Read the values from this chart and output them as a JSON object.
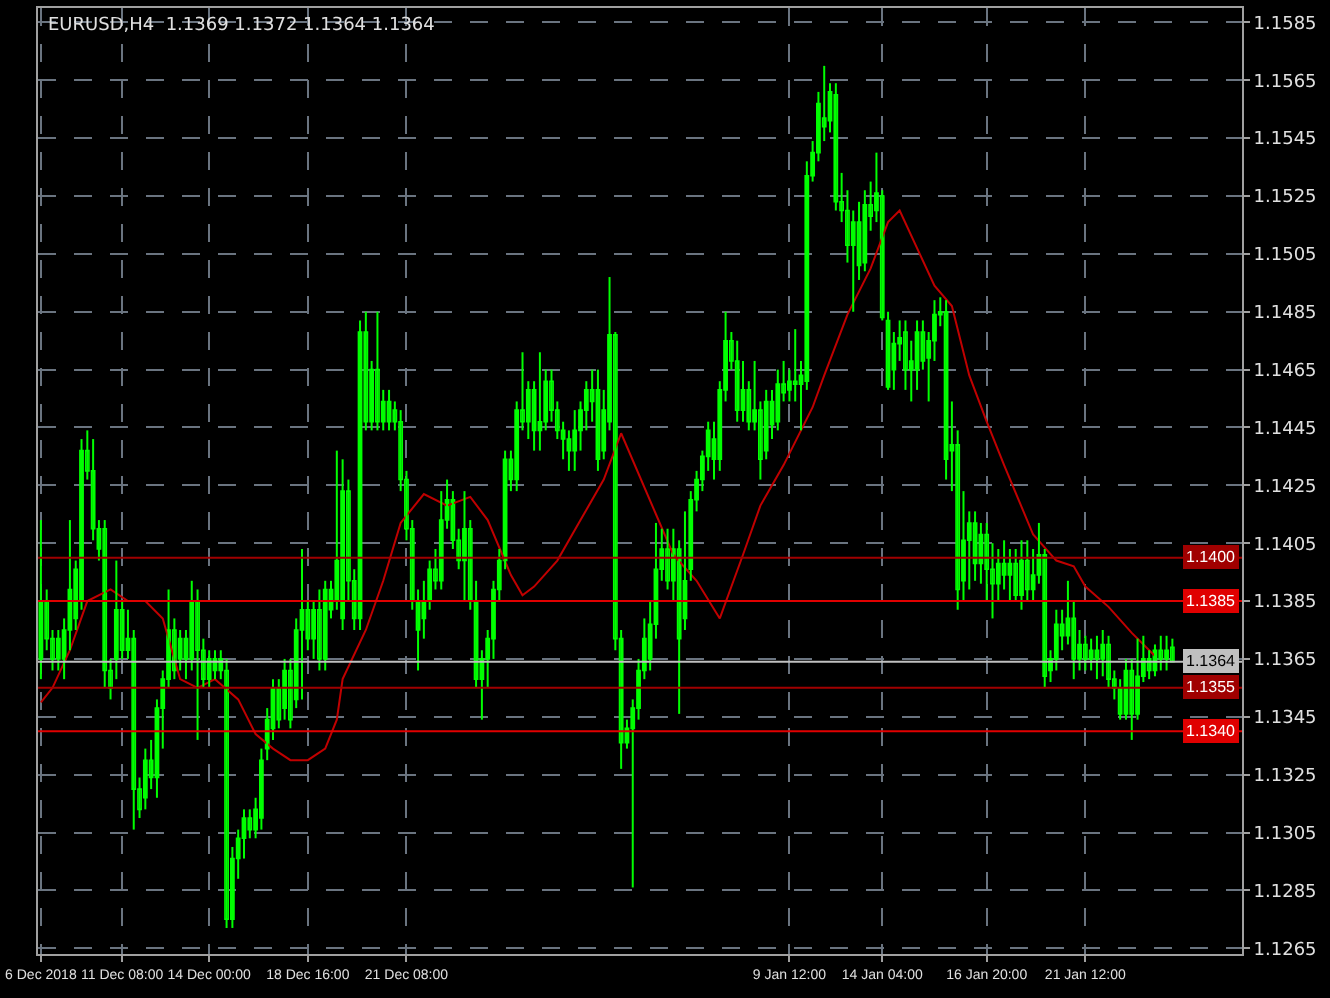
{
  "chart_data": {
    "type": "candlestick",
    "title": "EURUSD,H4  1.1369 1.1372 1.1364 1.1364",
    "color": "#00ff00",
    "grid": true,
    "categories": [
      "6 Dec 2018",
      null,
      null,
      null,
      null,
      null,
      null,
      null,
      null,
      null,
      null,
      null,
      null,
      null,
      "11 Dec 08:00",
      null,
      null,
      null,
      null,
      null,
      null,
      null,
      null,
      null,
      null,
      null,
      null,
      null,
      null,
      "14 Dec 00:00",
      null,
      null,
      null,
      null,
      null,
      null,
      null,
      null,
      null,
      null,
      null,
      null,
      null,
      null,
      null,
      null,
      "18 Dec 16:00",
      null,
      null,
      null,
      null,
      null,
      null,
      null,
      null,
      null,
      null,
      null,
      null,
      null,
      null,
      null,
      null,
      "21 Dec 08:00",
      null,
      null,
      null,
      null,
      null,
      null,
      null,
      null,
      null,
      null,
      null,
      null,
      null,
      null,
      null,
      null,
      null,
      null,
      null,
      null,
      null,
      null,
      null,
      null,
      null,
      null,
      null,
      null,
      null,
      null,
      null,
      null,
      null,
      null,
      null,
      null,
      null,
      null,
      null,
      null,
      null,
      null,
      null,
      null,
      null,
      null,
      null,
      null,
      null,
      null,
      null,
      null,
      null,
      null,
      null,
      null,
      null,
      null,
      null,
      null,
      null,
      null,
      null,
      null,
      null,
      "9 Jan 12:00",
      null,
      null,
      null,
      null,
      null,
      null,
      null,
      null,
      null,
      null,
      null,
      null,
      null,
      null,
      null,
      "14 Jan 04:00",
      null,
      null,
      null,
      null,
      null,
      null,
      null,
      null,
      null,
      null,
      null,
      null,
      null,
      null,
      null,
      null,
      null,
      "16 Jan 20:00",
      null,
      null,
      null,
      null,
      null,
      null,
      null,
      null,
      null,
      null,
      null,
      null,
      null,
      null,
      null,
      null,
      "21 Jan 12:00",
      null,
      null,
      null,
      null,
      null,
      null,
      null,
      null,
      null,
      null,
      null,
      null,
      null,
      null,
      null
    ],
    "ohlc": [
      [
        1.1365,
        1.1413,
        1.1358,
        1.1385
      ],
      [
        1.1385,
        1.1389,
        1.1368,
        1.1372
      ],
      [
        1.1372,
        1.1375,
        1.1361,
        1.1365
      ],
      [
        1.1365,
        1.1375,
        1.1361,
        1.1372
      ],
      [
        1.1365,
        1.1379,
        1.1358,
        1.1375
      ],
      [
        1.1375,
        1.1413,
        1.1368,
        1.1389
      ],
      [
        1.1379,
        1.1399,
        1.1375,
        1.1396
      ],
      [
        1.1385,
        1.1441,
        1.1382,
        1.1437
      ],
      [
        1.1437,
        1.1444,
        1.1427,
        1.143
      ],
      [
        1.143,
        1.1441,
        1.1406,
        1.141
      ],
      [
        1.141,
        1.1413,
        1.1399,
        1.1403
      ],
      [
        1.141,
        1.1413,
        1.1355,
        1.1361
      ],
      [
        1.1361,
        1.1365,
        1.1351,
        1.1355
      ],
      [
        1.1365,
        1.1399,
        1.1358,
        1.1382
      ],
      [
        1.1382,
        1.1385,
        1.1365,
        1.1368
      ],
      [
        1.1368,
        1.1382,
        1.1365,
        1.1372
      ],
      [
        1.1372,
        1.1375,
        1.1306,
        1.132
      ],
      [
        1.132,
        1.1324,
        1.131,
        1.1313
      ],
      [
        1.1317,
        1.1334,
        1.1313,
        1.133
      ],
      [
        1.133,
        1.1337,
        1.132,
        1.1324
      ],
      [
        1.1324,
        1.1351,
        1.1317,
        1.1348
      ],
      [
        1.1348,
        1.1361,
        1.1334,
        1.1358
      ],
      [
        1.1358,
        1.1389,
        1.1355,
        1.1375
      ],
      [
        1.1375,
        1.1379,
        1.1358,
        1.1361
      ],
      [
        1.1365,
        1.1375,
        1.1361,
        1.1372
      ],
      [
        1.1372,
        1.1375,
        1.1358,
        1.1365
      ],
      [
        1.1365,
        1.1392,
        1.1361,
        1.1385
      ],
      [
        1.1385,
        1.1389,
        1.1337,
        1.1368
      ],
      [
        1.1368,
        1.1372,
        1.1355,
        1.1358
      ],
      [
        1.1358,
        1.1368,
        1.1355,
        1.1365
      ],
      [
        1.1365,
        1.1368,
        1.1358,
        1.1361
      ],
      [
        1.1361,
        1.1368,
        1.1358,
        1.1365
      ],
      [
        1.1361,
        1.1365,
        1.1272,
        1.1275
      ],
      [
        1.1275,
        1.13,
        1.1272,
        1.1296
      ],
      [
        1.1296,
        1.1306,
        1.1289,
        1.1303
      ],
      [
        1.1303,
        1.1313,
        1.1296,
        1.131
      ],
      [
        1.131,
        1.1313,
        1.1303,
        1.1306
      ],
      [
        1.1306,
        1.1317,
        1.1303,
        1.1313
      ],
      [
        1.131,
        1.1334,
        1.1306,
        1.133
      ],
      [
        1.1334,
        1.1348,
        1.133,
        1.1344
      ],
      [
        1.1341,
        1.1358,
        1.1337,
        1.1355
      ],
      [
        1.1355,
        1.1358,
        1.1341,
        1.1344
      ],
      [
        1.1348,
        1.1365,
        1.1344,
        1.1361
      ],
      [
        1.1361,
        1.1365,
        1.1341,
        1.1344
      ],
      [
        1.1351,
        1.1379,
        1.1348,
        1.1375
      ],
      [
        1.1375,
        1.1403,
        1.1351,
        1.1382
      ],
      [
        1.1382,
        1.1385,
        1.1368,
        1.1372
      ],
      [
        1.1372,
        1.1385,
        1.1365,
        1.1382
      ],
      [
        1.1382,
        1.1389,
        1.1361,
        1.1365
      ],
      [
        1.1365,
        1.1392,
        1.1361,
        1.1389
      ],
      [
        1.1389,
        1.1392,
        1.1379,
        1.1382
      ],
      [
        1.1385,
        1.1437,
        1.1382,
        1.1399
      ],
      [
        1.1379,
        1.1434,
        1.1375,
        1.1423
      ],
      [
        1.1423,
        1.1427,
        1.1385,
        1.1392
      ],
      [
        1.1392,
        1.1396,
        1.1375,
        1.1379
      ],
      [
        1.1379,
        1.1482,
        1.1375,
        1.1478
      ],
      [
        1.1478,
        1.1485,
        1.1444,
        1.1447
      ],
      [
        1.1447,
        1.1468,
        1.1444,
        1.1465
      ],
      [
        1.1465,
        1.1485,
        1.1444,
        1.1447
      ],
      [
        1.1447,
        1.1458,
        1.1444,
        1.1454
      ],
      [
        1.1454,
        1.1458,
        1.1444,
        1.1447
      ],
      [
        1.1451,
        1.1454,
        1.1444,
        1.1447
      ],
      [
        1.1447,
        1.1451,
        1.1423,
        1.1427
      ],
      [
        1.1427,
        1.143,
        1.1406,
        1.141
      ],
      [
        1.141,
        1.1413,
        1.1382,
        1.1385
      ],
      [
        1.1385,
        1.1389,
        1.1361,
        1.1375
      ],
      [
        1.1379,
        1.1392,
        1.1372,
        1.1385
      ],
      [
        1.1385,
        1.1399,
        1.1382,
        1.1396
      ],
      [
        1.1396,
        1.1403,
        1.1389,
        1.1392
      ],
      [
        1.1392,
        1.1423,
        1.1389,
        1.1413
      ],
      [
        1.1413,
        1.1427,
        1.141,
        1.142
      ],
      [
        1.142,
        1.1423,
        1.1403,
        1.1406
      ],
      [
        1.1406,
        1.141,
        1.1396,
        1.1399
      ],
      [
        1.1399,
        1.1423,
        1.1385,
        1.141
      ],
      [
        1.141,
        1.1413,
        1.1382,
        1.1385
      ],
      [
        1.1385,
        1.1392,
        1.1355,
        1.1358
      ],
      [
        1.1358,
        1.1368,
        1.1344,
        1.1365
      ],
      [
        1.1365,
        1.1375,
        1.1355,
        1.1372
      ],
      [
        1.1372,
        1.1392,
        1.1365,
        1.1389
      ],
      [
        1.1389,
        1.1403,
        1.1385,
        1.1399
      ],
      [
        1.1399,
        1.1437,
        1.1396,
        1.1434
      ],
      [
        1.1434,
        1.1437,
        1.1423,
        1.1427
      ],
      [
        1.1427,
        1.1454,
        1.1423,
        1.1451
      ],
      [
        1.1451,
        1.1471,
        1.1444,
        1.1447
      ],
      [
        1.1447,
        1.1461,
        1.1441,
        1.1458
      ],
      [
        1.1458,
        1.1461,
        1.1437,
        1.1444
      ],
      [
        1.1444,
        1.1471,
        1.1437,
        1.1447
      ],
      [
        1.1447,
        1.1465,
        1.1444,
        1.1461
      ],
      [
        1.1461,
        1.1465,
        1.1447,
        1.1451
      ],
      [
        1.1451,
        1.1454,
        1.1441,
        1.1444
      ],
      [
        1.1444,
        1.1447,
        1.1434,
        1.1441
      ],
      [
        1.1441,
        1.1444,
        1.143,
        1.1437
      ],
      [
        1.1437,
        1.1451,
        1.143,
        1.1444
      ],
      [
        1.1444,
        1.1454,
        1.1437,
        1.1451
      ],
      [
        1.1451,
        1.1461,
        1.1444,
        1.1458
      ],
      [
        1.1458,
        1.1465,
        1.1447,
        1.1454
      ],
      [
        1.1458,
        1.1465,
        1.143,
        1.1434
      ],
      [
        1.1437,
        1.1458,
        1.1434,
        1.1451
      ],
      [
        1.1447,
        1.1497,
        1.1444,
        1.1477
      ],
      [
        1.1477,
        1.1478,
        1.1368,
        1.1372
      ],
      [
        1.1372,
        1.1375,
        1.1327,
        1.1336
      ],
      [
        1.1336,
        1.1344,
        1.1334,
        1.1341
      ],
      [
        1.1341,
        1.1351,
        1.1286,
        1.1348
      ],
      [
        1.1348,
        1.1365,
        1.1344,
        1.1361
      ],
      [
        1.1361,
        1.1379,
        1.1358,
        1.1372
      ],
      [
        1.1365,
        1.1385,
        1.1361,
        1.1377
      ],
      [
        1.1377,
        1.1412,
        1.1372,
        1.1396
      ],
      [
        1.1396,
        1.141,
        1.1392,
        1.1403
      ],
      [
        1.1403,
        1.141,
        1.1389,
        1.1392
      ],
      [
        1.1392,
        1.141,
        1.1385,
        1.1403
      ],
      [
        1.1403,
        1.1406,
        1.1346,
        1.1372
      ],
      [
        1.1379,
        1.1416,
        1.1375,
        1.1392
      ],
      [
        1.1396,
        1.1423,
        1.1392,
        1.142
      ],
      [
        1.142,
        1.143,
        1.1416,
        1.1427
      ],
      [
        1.1427,
        1.1437,
        1.1423,
        1.1435
      ],
      [
        1.1435,
        1.1447,
        1.143,
        1.1444
      ],
      [
        1.1441,
        1.1447,
        1.1427,
        1.1434
      ],
      [
        1.1434,
        1.1461,
        1.143,
        1.1458
      ],
      [
        1.1458,
        1.1485,
        1.1454,
        1.1475
      ],
      [
        1.1475,
        1.1478,
        1.1465,
        1.1468
      ],
      [
        1.1468,
        1.1475,
        1.1447,
        1.1451
      ],
      [
        1.1451,
        1.1468,
        1.1447,
        1.1458
      ],
      [
        1.1458,
        1.1461,
        1.1444,
        1.1447
      ],
      [
        1.1447,
        1.1468,
        1.1444,
        1.1451
      ],
      [
        1.1451,
        1.1454,
        1.1427,
        1.1434
      ],
      [
        1.1437,
        1.1458,
        1.1434,
        1.1454
      ],
      [
        1.1454,
        1.1458,
        1.1441,
        1.1446
      ],
      [
        1.1447,
        1.1465,
        1.1444,
        1.146
      ],
      [
        1.146,
        1.1468,
        1.1454,
        1.1457
      ],
      [
        1.1458,
        1.1465,
        1.1454,
        1.1461
      ],
      [
        1.1461,
        1.1479,
        1.1454,
        1.146
      ],
      [
        1.146,
        1.1468,
        1.1444,
        1.1463
      ],
      [
        1.1461,
        1.1537,
        1.1458,
        1.1532
      ],
      [
        1.1532,
        1.1544,
        1.153,
        1.154
      ],
      [
        1.154,
        1.1561,
        1.1537,
        1.1557
      ],
      [
        1.1552,
        1.157,
        1.1544,
        1.1549
      ],
      [
        1.1551,
        1.1564,
        1.1547,
        1.1561
      ],
      [
        1.156,
        1.1564,
        1.152,
        1.1523
      ],
      [
        1.1523,
        1.1533,
        1.1516,
        1.152
      ],
      [
        1.152,
        1.1527,
        1.1502,
        1.1508
      ],
      [
        1.1508,
        1.152,
        1.1485,
        1.1516
      ],
      [
        1.1516,
        1.1523,
        1.1496,
        1.1501
      ],
      [
        1.1502,
        1.1527,
        1.1499,
        1.1522
      ],
      [
        1.1522,
        1.153,
        1.1513,
        1.1518
      ],
      [
        1.152,
        1.154,
        1.1516,
        1.1526
      ],
      [
        1.1525,
        1.1527,
        1.1482,
        1.1483
      ],
      [
        1.1482,
        1.1485,
        1.1458,
        1.1459
      ],
      [
        1.1465,
        1.1478,
        1.1458,
        1.1474
      ],
      [
        1.1474,
        1.1482,
        1.1468,
        1.1476
      ],
      [
        1.1478,
        1.1482,
        1.1458,
        1.1465
      ],
      [
        1.1465,
        1.1475,
        1.1454,
        1.1468
      ],
      [
        1.1465,
        1.1482,
        1.1458,
        1.1478
      ],
      [
        1.1478,
        1.1482,
        1.1465,
        1.1468
      ],
      [
        1.1469,
        1.1478,
        1.1454,
        1.1475
      ],
      [
        1.1475,
        1.1489,
        1.1468,
        1.1484
      ],
      [
        1.1484,
        1.149,
        1.148,
        1.1485
      ],
      [
        1.1485,
        1.1489,
        1.1427,
        1.1434
      ],
      [
        1.1437,
        1.1454,
        1.1423,
        1.1439
      ],
      [
        1.1439,
        1.1444,
        1.1382,
        1.1389
      ],
      [
        1.1392,
        1.1423,
        1.1385,
        1.1406
      ],
      [
        1.1406,
        1.1416,
        1.1389,
        1.1412
      ],
      [
        1.1412,
        1.1416,
        1.1392,
        1.1398
      ],
      [
        1.1398,
        1.1412,
        1.1391,
        1.1408
      ],
      [
        1.1408,
        1.1412,
        1.1385,
        1.1396
      ],
      [
        1.1396,
        1.1405,
        1.1379,
        1.1391
      ],
      [
        1.1391,
        1.1403,
        1.1385,
        1.1398
      ],
      [
        1.1398,
        1.1406,
        1.1389,
        1.1394
      ],
      [
        1.1394,
        1.1403,
        1.1385,
        1.1398
      ],
      [
        1.1398,
        1.1403,
        1.1385,
        1.1387
      ],
      [
        1.1387,
        1.1406,
        1.1382,
        1.1399
      ],
      [
        1.1399,
        1.1406,
        1.1385,
        1.1389
      ],
      [
        1.1389,
        1.1403,
        1.1385,
        1.1394
      ],
      [
        1.1394,
        1.1412,
        1.1391,
        1.1401
      ],
      [
        1.1401,
        1.1403,
        1.1355,
        1.1359
      ],
      [
        1.1361,
        1.1368,
        1.1357,
        1.1365
      ],
      [
        1.1365,
        1.1382,
        1.1361,
        1.1377
      ],
      [
        1.1377,
        1.1382,
        1.1368,
        1.1373
      ],
      [
        1.1373,
        1.1392,
        1.137,
        1.1379
      ],
      [
        1.1379,
        1.1385,
        1.1358,
        1.1365
      ],
      [
        1.1365,
        1.1375,
        1.1361,
        1.137
      ],
      [
        1.137,
        1.1373,
        1.1361,
        1.1365
      ],
      [
        1.1365,
        1.1372,
        1.1361,
        1.1368
      ],
      [
        1.1368,
        1.1373,
        1.1358,
        1.1365
      ],
      [
        1.1365,
        1.1375,
        1.1359,
        1.137
      ],
      [
        1.137,
        1.1373,
        1.1355,
        1.1358
      ],
      [
        1.1358,
        1.1361,
        1.1351,
        1.1355
      ],
      [
        1.1355,
        1.1358,
        1.1344,
        1.1346
      ],
      [
        1.1346,
        1.1365,
        1.1344,
        1.1361
      ],
      [
        1.1361,
        1.1365,
        1.1337,
        1.1346
      ],
      [
        1.1346,
        1.1372,
        1.1344,
        1.1359
      ],
      [
        1.1359,
        1.1373,
        1.1357,
        1.1365
      ],
      [
        1.1365,
        1.1368,
        1.1358,
        1.1361
      ],
      [
        1.1361,
        1.137,
        1.1359,
        1.1368
      ],
      [
        1.1368,
        1.1373,
        1.1361,
        1.1365
      ],
      [
        1.1365,
        1.1373,
        1.1361,
        1.1368
      ],
      [
        1.1369,
        1.1372,
        1.1364,
        1.1364
      ]
    ],
    "series": [
      {
        "type": "line",
        "color": "#c00000",
        "values": [
          1.135,
          null,
          1.1355,
          null,
          null,
          1.1368,
          null,
          null,
          1.1385,
          null,
          null,
          null,
          1.1389,
          null,
          null,
          1.1385,
          null,
          null,
          1.1385,
          null,
          null,
          1.1379,
          null,
          null,
          1.1358,
          null,
          null,
          1.1355,
          null,
          null,
          1.1358,
          null,
          null,
          null,
          1.1351,
          null,
          null,
          1.1339,
          null,
          null,
          1.1334,
          null,
          null,
          1.133,
          null,
          null,
          1.133,
          null,
          null,
          1.1334,
          null,
          1.1344,
          1.1358,
          null,
          null,
          null,
          1.1375,
          null,
          null,
          1.1392,
          null,
          null,
          1.1412,
          null,
          null,
          null,
          1.1422,
          null,
          null,
          null,
          1.1418,
          null,
          null,
          null,
          1.1421,
          null,
          null,
          1.1413,
          null,
          null,
          null,
          1.1394,
          null,
          1.1387,
          null,
          1.139,
          null,
          null,
          null,
          1.1399,
          null,
          null,
          null,
          1.1413,
          null,
          null,
          null,
          1.1427,
          null,
          null,
          1.1443,
          null,
          null,
          null,
          null,
          null,
          1.1415,
          null,
          null,
          1.1401,
          null,
          null,
          null,
          1.1392,
          null,
          null,
          null,
          1.1379,
          null,
          null,
          null,
          1.1401,
          null,
          null,
          1.1418,
          null,
          null,
          null,
          1.1432,
          null,
          null,
          null,
          null,
          1.1452,
          null,
          1.1463,
          null,
          null,
          null,
          1.1484,
          null,
          null,
          null,
          1.15,
          null,
          null,
          1.1516,
          null,
          1.152,
          null,
          null,
          1.1507,
          null,
          null,
          1.1494,
          null,
          null,
          1.1487,
          null,
          null,
          1.1463,
          null,
          null,
          1.1447,
          null,
          null,
          1.1432,
          null,
          null,
          null,
          null,
          1.1408,
          null,
          null,
          null,
          1.1399,
          null,
          null,
          1.1397,
          null,
          1.139,
          null,
          null,
          null,
          1.1383,
          null,
          null,
          null,
          1.1374,
          null,
          null,
          null,
          1.1366,
          null,
          null,
          null
        ]
      }
    ],
    "ylim": [
      1.1263,
      1.159
    ],
    "yticks": [
      1.1265,
      1.1285,
      1.1305,
      1.1325,
      1.1345,
      1.1365,
      1.1385,
      1.1405,
      1.1425,
      1.1445,
      1.1465,
      1.1485,
      1.1505,
      1.1525,
      1.1545,
      1.1565,
      1.1585
    ],
    "ref_lines": [
      {
        "axis": "y",
        "value": 1.14,
        "label": "1.1400",
        "color": "#a00000"
      },
      {
        "axis": "y",
        "value": 1.1385,
        "label": "1.1385",
        "color": "#e00000"
      },
      {
        "axis": "y",
        "value": 1.1364,
        "label": "1.1364",
        "color": "#c0c0c0"
      },
      {
        "axis": "y",
        "value": 1.1355,
        "label": "1.1355",
        "color": "#a00000"
      },
      {
        "axis": "y",
        "value": 1.134,
        "label": "1.1340",
        "color": "#e00000"
      }
    ]
  }
}
